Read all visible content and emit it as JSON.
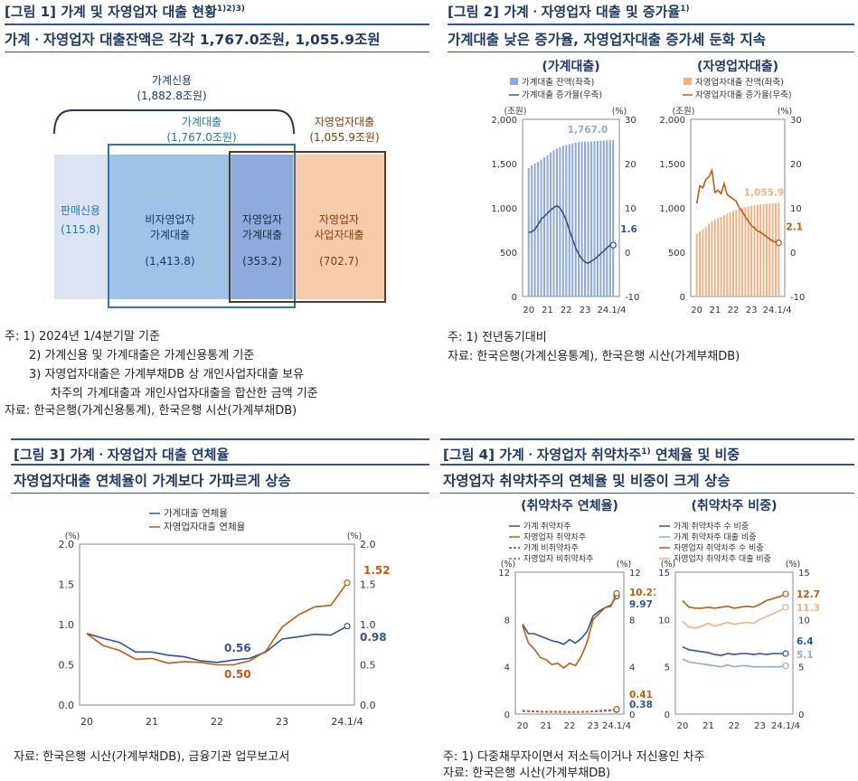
{
  "panel1": {
    "title": "[그림 1] 가계 및 자영업자 대출 현황",
    "title_sup": "1)2)3)",
    "subtitle": "가계ㆍ자영업자 대출잔액은 각각 1,767.0조원, 1,055.9조원",
    "labels": {
      "household_credit": "가계신용",
      "household_credit_value": "(1,882.8조원)",
      "household_loans": "가계대출",
      "household_loans_value": "(1,767.0조원)",
      "self_employed_loans": "자영업자대출",
      "self_employed_loans_value": "(1,055.9조원)",
      "sales_credit": "판매신용",
      "sales_credit_value": "(115.8)",
      "non_se_household": "비자영업자\n가계대출",
      "non_se_household_value": "(1,413.8)",
      "se_household": "자영업자\n가계대출",
      "se_household_value": "(353.2)",
      "se_business": "자영업자\n사업자대출",
      "se_business_value": "(702.7)"
    },
    "notes": [
      "주: 1) 2024년 1/4분기말 기준",
      "2) 가계신용 및 가계대출은 가계신용통계 기준",
      "3) 자영업자대출은 가계부채DB 상 개인사업자대출 보유",
      "차주의 가계대출과 개인사업자대출을 합산한 금액 기준",
      "자료: 한국은행(가계신용통계), 한국은행 시산(가계부채DB)"
    ],
    "colors": {
      "sales": "#dce3f3",
      "nonse": "#9dc3e6",
      "sehh": "#8faadc",
      "sebiz": "#f8cbad",
      "blue_text": "#1f77b4",
      "navy_text": "#1f3864",
      "orange_text": "#843c0c"
    }
  },
  "panel2": {
    "title": "[그림 2] 가계ㆍ자영업자 대출 및 증가율",
    "title_sup": "1)",
    "subtitle": "가계대출 낮은 증가율, 자영업자대출 증가세 둔화 지속",
    "notes": [
      "주: 1) 전년동기대비",
      "자료: 한국은행(가계신용통계), 한국은행 시산(가계부채DB)"
    ]
  },
  "panel3": {
    "title": "[그림 3] 가계ㆍ자영업자 대출 연체율",
    "subtitle": "자영업자대출 연체율이 가계보다 가파르게 상승",
    "notes": [
      "자료: 한국은행 시산(가계부채DB), 금융기관 업무보고서"
    ]
  },
  "panel4": {
    "title": "[그림 4] 가계ㆍ자영업자 취약차주",
    "title_sup": "1)",
    "title_tail": " 연체율 및 비중",
    "subtitle": "자영업자 취약차주의 연체율 및 비중이 크게 상승",
    "notes": [
      "주: 1) 다중채무자이면서 저소득이거나 저신용인 차주",
      "자료: 한국은행 시산(가계부채DB)"
    ]
  },
  "chart_data": [
    {
      "id": "hh_loans",
      "type": "bar+line",
      "title": "(가계대출)",
      "left_unit": "(조원)",
      "right_unit": "(%)",
      "left_ylim": [
        0,
        2000
      ],
      "right_ylim": [
        -10,
        30
      ],
      "left_ticks": [
        "2,000",
        "1,500",
        "1,000",
        "500",
        "0"
      ],
      "right_ticks": [
        "30",
        "20",
        "10",
        "0",
        "-10"
      ],
      "x_ticks": [
        "20",
        "21",
        "22",
        "23",
        "24.1/4"
      ],
      "series": [
        {
          "name": "가계대출 잔액(좌축)",
          "kind": "bar",
          "color": "#8faadc",
          "values": [
            1450,
            1480,
            1500,
            1520,
            1545,
            1570,
            1595,
            1625,
            1650,
            1670,
            1685,
            1700,
            1710,
            1720,
            1728,
            1735,
            1742,
            1745,
            1747,
            1748,
            1750,
            1752,
            1755,
            1758,
            1760,
            1762,
            1765,
            1767
          ]
        },
        {
          "name": "가계대출 증가율(우축)",
          "kind": "line",
          "color": "#2f5597",
          "values": [
            4.5,
            4.6,
            5.2,
            6.2,
            7.5,
            8.1,
            8.8,
            9.5,
            10.1,
            10.5,
            10.0,
            8.8,
            7.2,
            5.0,
            3.0,
            1.0,
            -0.5,
            -1.5,
            -2.2,
            -2.5,
            -2.0,
            -1.6,
            -1.0,
            -0.3,
            0.3,
            1.0,
            1.6,
            1.6
          ]
        }
      ],
      "annotations": [
        {
          "text": "1,767.0",
          "color": "#8faadc"
        },
        {
          "text": "1.6",
          "color": "#2f5597"
        }
      ]
    },
    {
      "id": "se_loans",
      "type": "bar+line",
      "title": "(자영업자대출)",
      "left_unit": "(조원)",
      "right_unit": "(%)",
      "left_ylim": [
        0,
        2000
      ],
      "right_ylim": [
        -10,
        30
      ],
      "left_ticks": [
        "2,000",
        "1,500",
        "1,000",
        "500",
        "0"
      ],
      "right_ticks": [
        "30",
        "20",
        "10",
        "0",
        "-10"
      ],
      "x_ticks": [
        "20",
        "21",
        "22",
        "23",
        "24.1/4"
      ],
      "series": [
        {
          "name": "자영업자대출 잔액(좌축)",
          "kind": "bar",
          "color": "#f4b183",
          "values": [
            710,
            735,
            760,
            790,
            820,
            850,
            870,
            885,
            900,
            918,
            935,
            950,
            965,
            978,
            990,
            1000,
            1010,
            1018,
            1025,
            1030,
            1035,
            1040,
            1043,
            1046,
            1049,
            1052,
            1054,
            1056
          ]
        },
        {
          "name": "자영업자대출 증가율(우축)",
          "kind": "line",
          "color": "#c55a11",
          "values": [
            11.0,
            15.0,
            14.5,
            16.5,
            17.0,
            18.5,
            13.5,
            14.0,
            13.2,
            15.5,
            13.0,
            12.5,
            12.0,
            11.5,
            10.0,
            9.2,
            8.0,
            7.0,
            6.0,
            5.5,
            4.8,
            4.5,
            4.0,
            3.5,
            3.0,
            2.5,
            2.3,
            2.1
          ]
        }
      ],
      "annotations": [
        {
          "text": "1,055.9",
          "color": "#f4b183"
        },
        {
          "text": "2.1",
          "color": "#c55a11"
        }
      ]
    },
    {
      "id": "delinquency",
      "type": "line",
      "title": "",
      "left_unit": "(%)",
      "right_unit": "(%)",
      "ylim": [
        0,
        2.0
      ],
      "y_ticks": [
        "2.0",
        "1.5",
        "1.0",
        "0.5",
        "0.0"
      ],
      "x_ticks": [
        "20",
        "21",
        "22",
        "23",
        "24.1/4"
      ],
      "series": [
        {
          "name": "가계대출 연체율",
          "color": "#2f5597",
          "values": [
            0.89,
            0.83,
            0.78,
            0.66,
            0.66,
            0.62,
            0.6,
            0.55,
            0.53,
            0.56,
            0.58,
            0.66,
            0.82,
            0.85,
            0.88,
            0.87,
            0.98
          ]
        },
        {
          "name": "자영업자대출 연체율",
          "color": "#c55a11",
          "values": [
            0.89,
            0.74,
            0.68,
            0.57,
            0.58,
            0.52,
            0.54,
            0.53,
            0.5,
            0.5,
            0.55,
            0.67,
            0.97,
            1.12,
            1.22,
            1.24,
            1.52
          ]
        }
      ],
      "annotations": [
        {
          "text": "0.56",
          "color": "#2f5597"
        },
        {
          "text": "0.50",
          "color": "#c55a11"
        },
        {
          "text": "0.98",
          "color": "#2f5597"
        },
        {
          "text": "1.52",
          "color": "#c55a11"
        }
      ]
    },
    {
      "id": "vuln_delinquency",
      "type": "line",
      "title": "(취약차주 연체율)",
      "left_unit": "(%)",
      "right_unit": "(%)",
      "ylim": [
        0,
        12
      ],
      "y_ticks": [
        "12",
        "8",
        "4",
        "0"
      ],
      "x_ticks": [
        "20",
        "21",
        "22",
        "23",
        "24.1/4"
      ],
      "series": [
        {
          "name": "가계 취약차주",
          "color": "#2f5597",
          "dash": false,
          "values": [
            7.6,
            6.8,
            6.8,
            6.6,
            6.4,
            6.2,
            6.1,
            5.9,
            6.3,
            6.0,
            6.4,
            7.0,
            8.3,
            8.7,
            9.0,
            9.2,
            9.97
          ]
        },
        {
          "name": "자영업자 취약차주",
          "color": "#c55a11",
          "dash": false,
          "values": [
            7.5,
            6.0,
            5.5,
            4.8,
            4.6,
            4.2,
            4.3,
            3.9,
            4.3,
            4.1,
            4.9,
            6.1,
            8.0,
            8.5,
            9.0,
            9.1,
            10.21
          ]
        },
        {
          "name": "가계 비취약차주",
          "color": "#2f5597",
          "dash": true,
          "values": [
            0.25,
            0.24,
            0.22,
            0.2,
            0.2,
            0.19,
            0.18,
            0.18,
            0.18,
            0.18,
            0.19,
            0.2,
            0.22,
            0.24,
            0.27,
            0.3,
            0.38
          ]
        },
        {
          "name": "자영업자 비취약차주",
          "color": "#c55a11",
          "dash": true,
          "values": [
            0.3,
            0.27,
            0.24,
            0.22,
            0.2,
            0.19,
            0.18,
            0.18,
            0.17,
            0.17,
            0.18,
            0.2,
            0.24,
            0.28,
            0.32,
            0.36,
            0.41
          ]
        }
      ],
      "annotations": [
        {
          "text": "10.21",
          "color": "#c55a11"
        },
        {
          "text": "9.97",
          "color": "#2f5597"
        },
        {
          "text": "0.41",
          "color": "#c55a11"
        },
        {
          "text": "0.38",
          "color": "#2f5597"
        }
      ]
    },
    {
      "id": "vuln_share",
      "type": "line",
      "title": "(취약차주 비중)",
      "left_unit": "(%)",
      "right_unit": "(%)",
      "ylim": [
        0,
        15
      ],
      "y_ticks": [
        "15",
        "10",
        "5",
        "0"
      ],
      "x_ticks": [
        "20",
        "21",
        "22",
        "23",
        "24.1/4"
      ],
      "series": [
        {
          "name": "가계 취약차주 수 비중",
          "color": "#2f5597",
          "values": [
            7.1,
            6.8,
            6.7,
            6.6,
            6.5,
            6.3,
            6.2,
            6.4,
            6.3,
            6.4,
            6.4,
            6.3,
            6.4,
            6.3,
            6.4,
            6.4,
            6.4
          ]
        },
        {
          "name": "가계 취약차주 대출 비중",
          "color": "#8faadc",
          "values": [
            5.8,
            5.5,
            5.4,
            5.3,
            5.2,
            5.1,
            5.0,
            5.2,
            5.0,
            5.1,
            5.1,
            5.0,
            5.0,
            5.0,
            5.0,
            5.0,
            5.1
          ]
        },
        {
          "name": "자영업자 취약차주 수 비중",
          "color": "#c55a11",
          "values": [
            12.0,
            11.3,
            11.2,
            11.2,
            11.3,
            11.2,
            11.3,
            11.4,
            11.2,
            11.3,
            11.4,
            11.3,
            11.6,
            12.0,
            12.2,
            12.4,
            12.7
          ]
        },
        {
          "name": "자영업자 취약차주 대출 비중",
          "color": "#f4b183",
          "values": [
            9.8,
            9.2,
            9.1,
            9.3,
            9.6,
            9.3,
            9.5,
            9.7,
            9.5,
            9.6,
            9.7,
            9.6,
            10.0,
            10.3,
            10.6,
            10.9,
            11.3
          ]
        }
      ],
      "annotations": [
        {
          "text": "12.7",
          "color": "#c55a11"
        },
        {
          "text": "11.3",
          "color": "#f4b183"
        },
        {
          "text": "6.4",
          "color": "#2f5597"
        },
        {
          "text": "5.1",
          "color": "#8faadc"
        }
      ]
    }
  ]
}
